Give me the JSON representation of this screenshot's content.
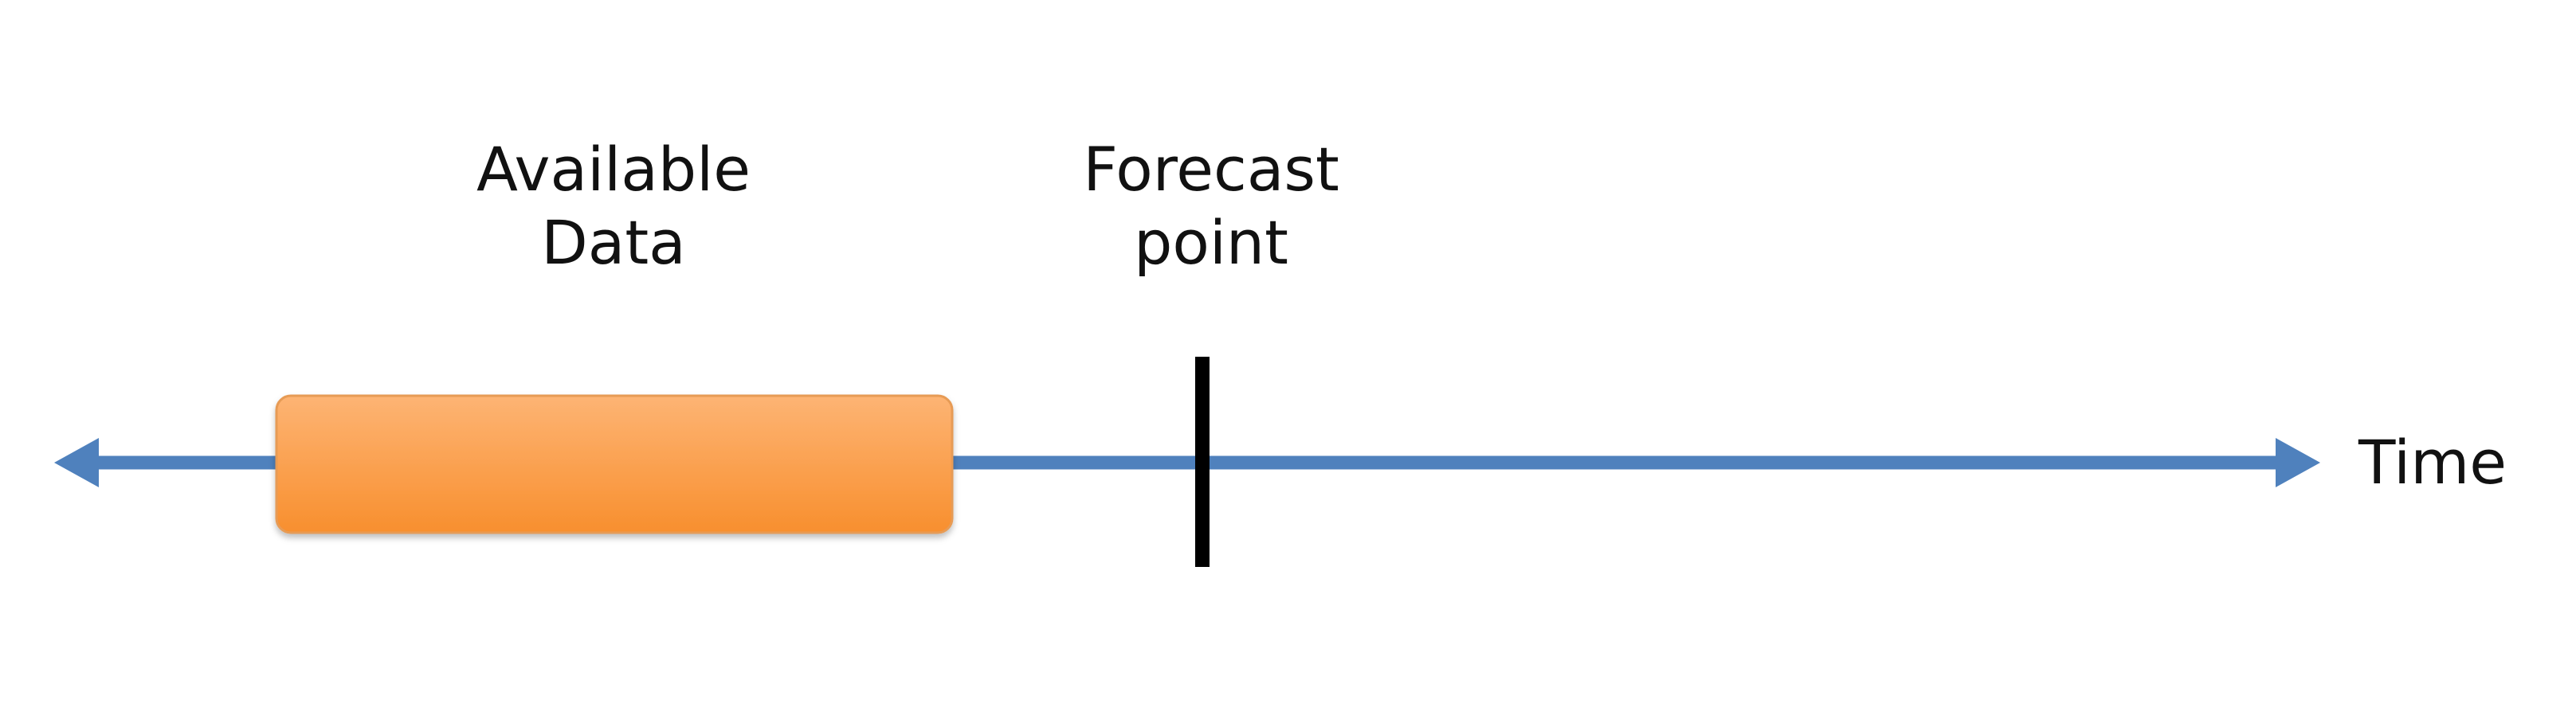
{
  "labels": {
    "available_data": [
      "Available",
      "Data"
    ],
    "forecast_point": [
      "Forecast",
      "point"
    ],
    "time": "Time"
  },
  "colors": {
    "background": "#ffffff",
    "timeline": "#4f81bd",
    "data_box_top": "#fdb474",
    "data_box_bottom": "#f88f2e",
    "data_box_border": "#e79b55",
    "marker": "#000000",
    "text": "#111111"
  }
}
